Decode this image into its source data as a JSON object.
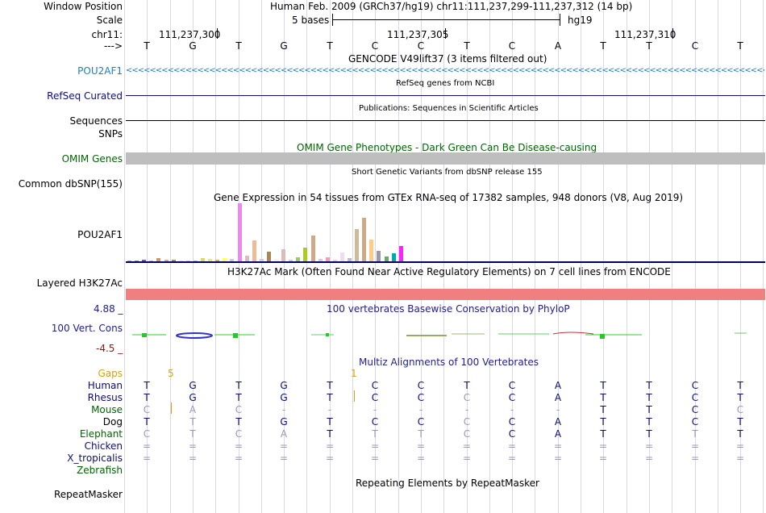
{
  "header": {
    "window_position_label": "Window Position",
    "assembly_position": "Human Feb. 2009 (GRCh37/hg19)   chr11:111,237,299-111,237,312 (14 bp)",
    "scale_label": "Scale",
    "scale_text": "5 bases",
    "scale_db": "hg19",
    "chrom_label": "chr11:",
    "coords": [
      "111,237,300",
      "111,237,305",
      "111,237,310"
    ],
    "strand_arrow": "--->",
    "sequence": [
      "T",
      "G",
      "T",
      "G",
      "T",
      "C",
      "C",
      "T",
      "C",
      "A",
      "T",
      "T",
      "C",
      "T"
    ]
  },
  "tracks": {
    "gencode": {
      "title": "GENCODE V49lift37 (3 items filtered out)",
      "item": "POU2AF1",
      "color": "#1a7fbf"
    },
    "refseq": {
      "title": "RefSeq genes from NCBI",
      "label": "RefSeq Curated"
    },
    "publications": {
      "title": "Publications: Sequences in Scientific Articles",
      "label": "Sequences"
    },
    "snps_label": "SNPs",
    "omim": {
      "title": "OMIM Gene Phenotypes - Dark Green Can Be Disease-causing",
      "label": "OMIM Genes"
    },
    "dbsnp": {
      "title": "Short Genetic Variants from dbSNP release 155",
      "label": "Common dbSNP(155)"
    },
    "gtex": {
      "title": "Gene Expression in 54 tissues from GTEx RNA-seq of 17382 samples, 948 donors (V8, Aug 2019)",
      "label": "POU2AF1"
    },
    "h3k27ac": {
      "title": "H3K27Ac Mark (Often Found Near Active Regulatory Elements) on 7 cell lines from ENCODE",
      "label": "Layered H3K27Ac"
    },
    "conservation": {
      "title": "100 vertebrates Basewise Conservation by PhyloP",
      "label": "100 Vert. Cons",
      "max": "4.88 _",
      "min": "-4.5 _"
    },
    "multiz": {
      "title": "Multiz Alignments of 100 Vertebrates",
      "gaps_label": "Gaps",
      "gap_values": [
        "5",
        "1"
      ],
      "species": [
        {
          "name": "Human",
          "bases": [
            "T",
            "G",
            "T",
            "G",
            "T",
            "C",
            "C",
            "T",
            "C",
            "A",
            "T",
            "T",
            "C",
            "T"
          ]
        },
        {
          "name": "Rhesus",
          "bases": [
            "T",
            "G",
            "T",
            "G",
            "T",
            "C",
            "C",
            "C",
            "C",
            "A",
            "T",
            "T",
            "C",
            "T"
          ]
        },
        {
          "name": "Mouse",
          "bases": [
            "C",
            "A",
            "C",
            "-",
            "-",
            "-",
            "-",
            "-",
            "-",
            "-",
            "T",
            "T",
            "C",
            "C"
          ]
        },
        {
          "name": "Dog",
          "bases": [
            "T",
            "T",
            "T",
            "G",
            "T",
            "C",
            "C",
            "C",
            "C",
            "A",
            "T",
            "T",
            "C",
            "T"
          ]
        },
        {
          "name": "Elephant",
          "bases": [
            "C",
            "T",
            "C",
            "A",
            "T",
            "T",
            "T",
            "C",
            "C",
            "A",
            "T",
            "T",
            "T",
            "T"
          ]
        },
        {
          "name": "Chicken",
          "bases": [
            "=",
            "=",
            "=",
            "=",
            "=",
            "=",
            "=",
            "=",
            "=",
            "=",
            "=",
            "=",
            "=",
            "="
          ]
        },
        {
          "name": "X_tropicalis",
          "bases": [
            "=",
            "=",
            "=",
            "=",
            "=",
            "=",
            "=",
            "=",
            "=",
            "=",
            "=",
            "=",
            "=",
            "="
          ]
        },
        {
          "name": "Zebrafish",
          "bases": [
            "",
            "",
            "",
            "",
            "",
            "",
            "",
            "",
            "",
            "",
            "",
            "",
            "",
            ""
          ]
        }
      ]
    },
    "repeatmasker": {
      "title": "Repeating Elements by RepeatMasker",
      "label": "RepeatMasker"
    }
  },
  "gtex_bars": [
    {
      "value": 2,
      "color": "#cc9966"
    },
    {
      "value": 2,
      "color": "#aa77aa"
    },
    {
      "value": 3,
      "color": "#7755aa"
    },
    {
      "value": 2,
      "color": "#bbbbbb"
    },
    {
      "value": 6,
      "color": "#cc9966"
    },
    {
      "value": 3,
      "color": "#ddaa88"
    },
    {
      "value": 3,
      "color": "#aa8866"
    },
    {
      "value": 2,
      "color": "#dddddd"
    },
    {
      "value": 2,
      "color": "#eecc99"
    },
    {
      "value": 2,
      "color": "#ccbb88"
    },
    {
      "value": 5,
      "color": "#dddd55"
    },
    {
      "value": 4,
      "color": "#eeee55"
    },
    {
      "value": 3,
      "color": "#ddaa55"
    },
    {
      "value": 6,
      "color": "#ffff55"
    },
    {
      "value": 4,
      "color": "#cccccc"
    },
    {
      "value": 100,
      "color": "#ee88ee"
    },
    {
      "value": 10,
      "color": "#ddbbbb"
    },
    {
      "value": 36,
      "color": "#eebb99"
    },
    {
      "value": 4,
      "color": "#ddcccc"
    },
    {
      "value": 16,
      "color": "#aa8855"
    },
    {
      "value": 4,
      "color": "#ffeeee"
    },
    {
      "value": 21,
      "color": "#ddbbbb"
    },
    {
      "value": 3,
      "color": "#ccccdd"
    },
    {
      "value": 7,
      "color": "#99cc66"
    },
    {
      "value": 24,
      "color": "#aacc22"
    },
    {
      "value": 45,
      "color": "#ccaa88"
    },
    {
      "value": 4,
      "color": "#ddcccc"
    },
    {
      "value": 7,
      "color": "#ff99bb"
    },
    {
      "value": 3,
      "color": "#ffcccc"
    },
    {
      "value": 15,
      "color": "#eeddee"
    },
    {
      "value": 5,
      "color": "#bbbbcc"
    },
    {
      "value": 55,
      "color": "#ccbb99"
    },
    {
      "value": 75,
      "color": "#ccaa88"
    },
    {
      "value": 37,
      "color": "#ffcc88"
    },
    {
      "value": 18,
      "color": "#9999aa"
    },
    {
      "value": 9,
      "color": "#66aa66"
    },
    {
      "value": 14,
      "color": "#00aaaa"
    },
    {
      "value": 27,
      "color": "#ff22ff"
    }
  ]
}
